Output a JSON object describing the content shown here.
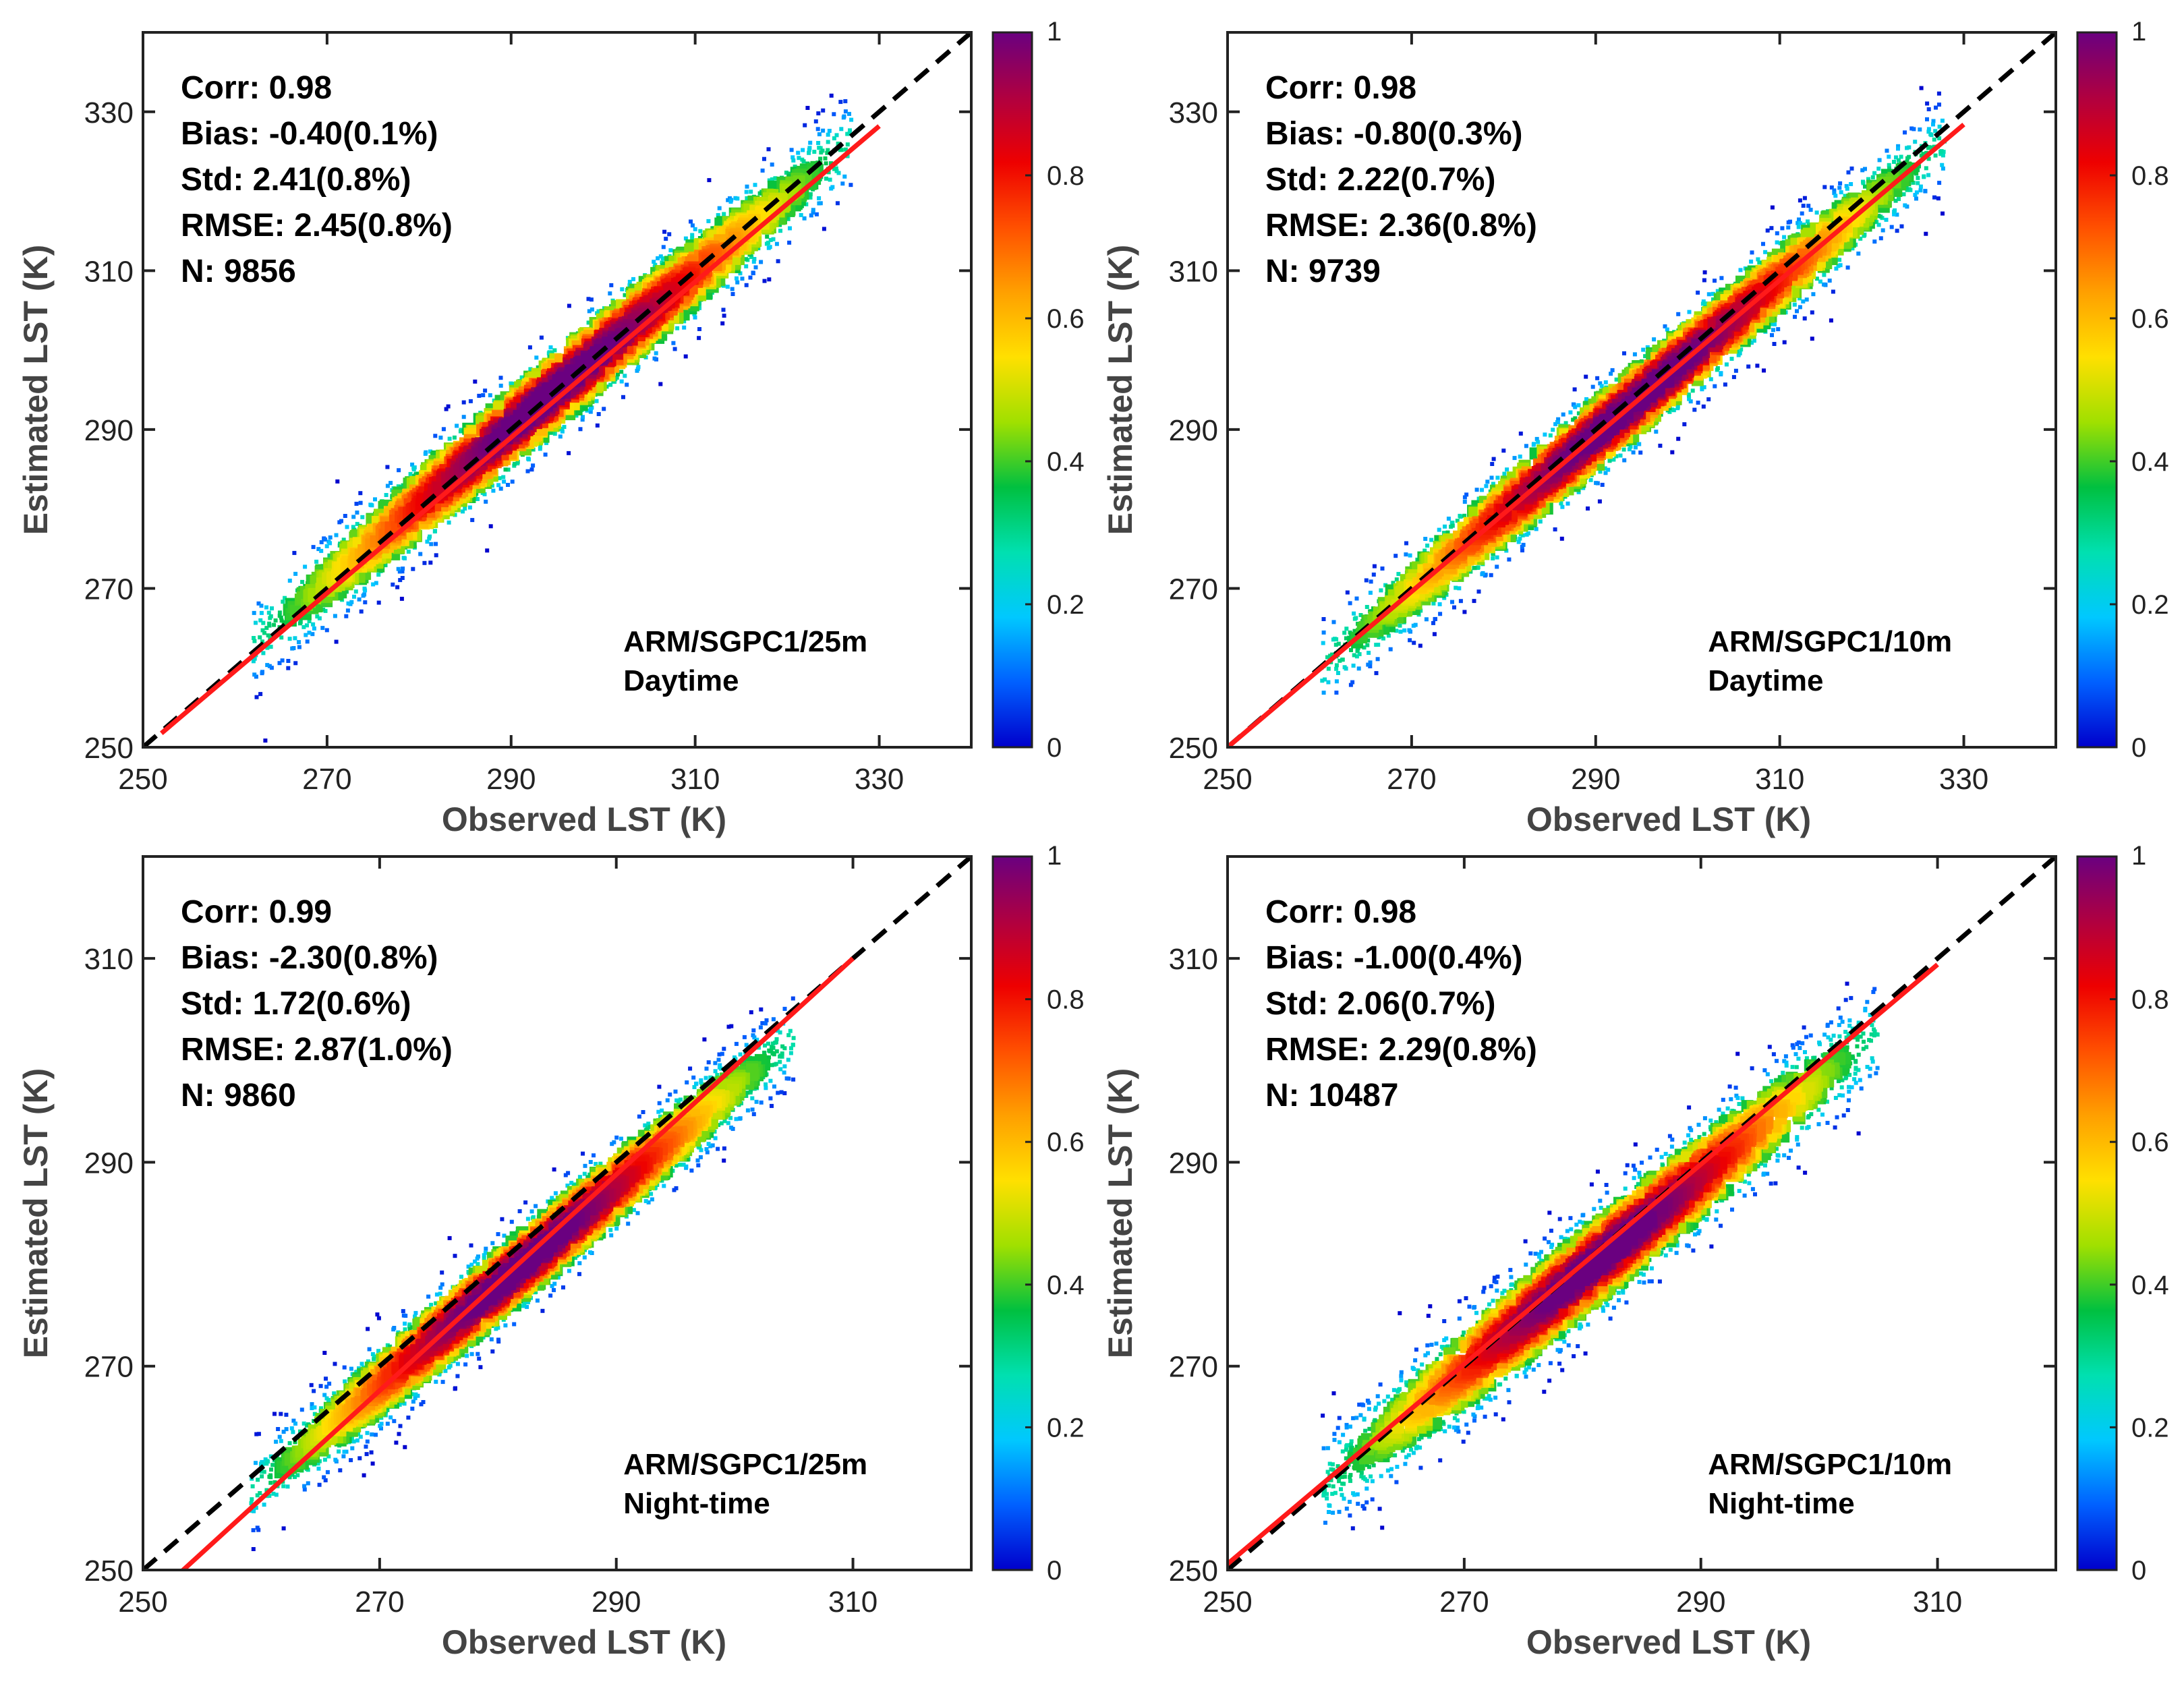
{
  "chart_data": [
    {
      "type": "scatter",
      "subtype": "density-scatter",
      "xlabel": "Observed LST (K)",
      "ylabel": "Estimated LST (K)",
      "xlim": [
        250,
        340
      ],
      "ylim": [
        250,
        340
      ],
      "xticks": [
        250,
        270,
        290,
        310,
        330
      ],
      "yticks": [
        250,
        270,
        290,
        310,
        330
      ],
      "stats": [
        "Corr: 0.98",
        "Bias: -0.40(0.1%)",
        "Std: 2.41(0.8%)",
        "RMSE: 2.45(0.8%)",
        "N: 9856"
      ],
      "site": "ARM/SGPC1/25m",
      "period": "Daytime",
      "obs_range": [
        262,
        327
      ],
      "center_lo": 1.0,
      "center_hi": -0.8,
      "spread": 3.2,
      "fit_line": {
        "slope": 0.98,
        "intercept": 4.8,
        "x_range": [
          252,
          330
        ]
      },
      "identity_line": [
        250,
        340
      ]
    },
    {
      "type": "scatter",
      "subtype": "density-scatter",
      "xlabel": "Observed LST (K)",
      "ylabel": "Estimated LST (K)",
      "xlim": [
        250,
        340
      ],
      "ylim": [
        250,
        340
      ],
      "xticks": [
        250,
        270,
        290,
        310,
        330
      ],
      "yticks": [
        250,
        270,
        290,
        310,
        330
      ],
      "stats": [
        "Corr: 0.98",
        "Bias: -0.80(0.3%)",
        "Std: 2.22(0.7%)",
        "RMSE: 2.36(0.8%)",
        "N: 9739"
      ],
      "site": "ARM/SGPC1/10m",
      "period": "Daytime",
      "obs_range": [
        260,
        328
      ],
      "center_lo": 0.0,
      "center_hi": -1.6,
      "spread": 3.0,
      "fit_line": {
        "slope": 0.98,
        "intercept": 5.0,
        "x_range": [
          250,
          330
        ]
      },
      "identity_line": [
        250,
        340
      ]
    },
    {
      "type": "scatter",
      "subtype": "density-scatter",
      "xlabel": "Observed LST (K)",
      "ylabel": "Estimated LST (K)",
      "xlim": [
        250,
        320
      ],
      "ylim": [
        250,
        320
      ],
      "xticks": [
        250,
        270,
        290,
        310
      ],
      "yticks": [
        250,
        270,
        290,
        310
      ],
      "stats": [
        "Corr: 0.99",
        "Bias: -2.30(0.8%)",
        "Std: 1.72(0.6%)",
        "RMSE: 2.87(1.0%)",
        "N: 9860"
      ],
      "site": "ARM/SGPC1/25m",
      "period": "Night-time",
      "obs_range": [
        259,
        305
      ],
      "center_lo": -1.6,
      "center_hi": -2.8,
      "spread": 2.3,
      "fit_line": {
        "slope": 1.06,
        "intercept": -18.6,
        "x_range": [
          252,
          310
        ]
      },
      "identity_line": [
        250,
        320
      ]
    },
    {
      "type": "scatter",
      "subtype": "density-scatter",
      "xlabel": "Observed LST (K)",
      "ylabel": "Estimated LST (K)",
      "xlim": [
        250,
        320
      ],
      "ylim": [
        250,
        320
      ],
      "xticks": [
        250,
        270,
        290,
        310
      ],
      "yticks": [
        250,
        270,
        290,
        310
      ],
      "stats": [
        "Corr: 0.98",
        "Bias: -1.00(0.4%)",
        "Std: 2.06(0.7%)",
        "RMSE: 2.29(0.8%)",
        "N: 10487"
      ],
      "site": "ARM/SGPC1/10m",
      "period": "Night-time",
      "obs_range": [
        258,
        305
      ],
      "center_lo": 0.2,
      "center_hi": -2.2,
      "spread": 2.8,
      "fit_line": {
        "slope": 0.98,
        "intercept": 5.6,
        "x_range": [
          250,
          310
        ]
      },
      "identity_line": [
        250,
        320
      ]
    }
  ],
  "colorbar": {
    "ticks": [
      "0",
      "0.2",
      "0.4",
      "0.6",
      "0.8",
      "1"
    ],
    "tick_values": [
      0,
      0.2,
      0.4,
      0.6,
      0.8,
      1.0
    ],
    "colors": [
      "#0000cc",
      "#0060ff",
      "#00c8ff",
      "#00e0b0",
      "#00c040",
      "#a0e000",
      "#ffe000",
      "#ffa000",
      "#ff5000",
      "#ee0000",
      "#b00040",
      "#6a0080"
    ]
  },
  "style": {
    "fit_color": "#ff1a1a",
    "identity_color": "#000000",
    "axis_color": "#222222"
  }
}
